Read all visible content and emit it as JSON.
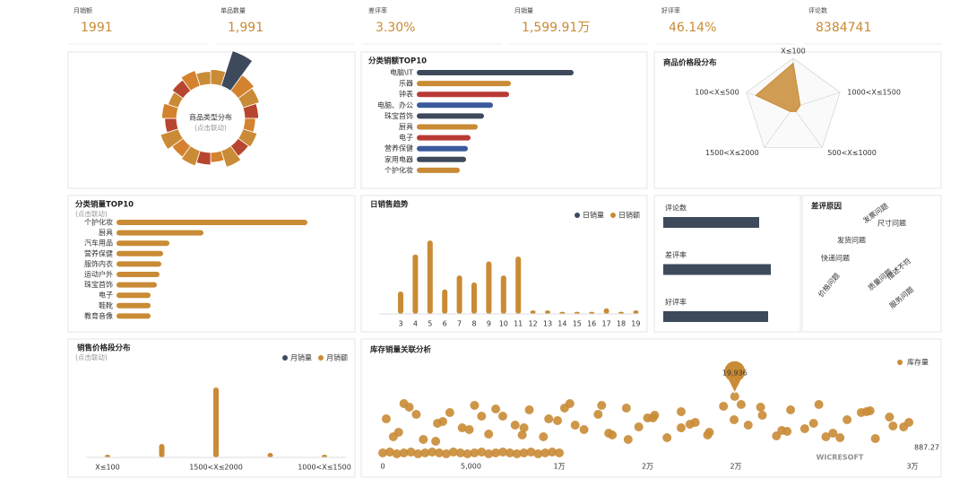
{
  "kpis": [
    {
      "label": "月销额",
      "value": "1991"
    },
    {
      "label": "单品数量",
      "value": "1,991"
    },
    {
      "label": "差评率",
      "value": "3.30%"
    },
    {
      "label": "月销量",
      "value": "1,599.91万"
    },
    {
      "label": "好评率",
      "value": "46.14%"
    },
    {
      "label": "评论数",
      "value": "8384741"
    }
  ],
  "watermark": "WICRESOFT",
  "chart_data": [
    {
      "type": "rose",
      "title": "商品类型分布",
      "subtitle": "(点击联动)",
      "values": [
        30,
        75,
        40,
        35,
        28,
        22,
        30,
        26,
        35,
        20,
        25,
        32,
        28,
        38,
        24,
        30,
        22,
        27,
        33,
        26
      ],
      "colors": [
        "#c98b35",
        "#3d4a5c",
        "#d4822f",
        "#c98b35",
        "#b8452f",
        "#d4822f",
        "#c98b35",
        "#b8452f",
        "#c98b35",
        "#d4822f",
        "#b8452f",
        "#c98b35",
        "#d4822f",
        "#c98b35",
        "#b8452f",
        "#d4822f",
        "#c98b35",
        "#b8452f",
        "#d4822f",
        "#c98b35"
      ]
    },
    {
      "type": "hbar",
      "title": "分类销额TOP10",
      "categories": [
        "电脑\\IT",
        "乐器",
        "钟表",
        "电脑、办公",
        "珠宝首饰",
        "厨具",
        "电子",
        "营养保健",
        "家用电器",
        "个护化妆"
      ],
      "values": [
        175,
        105,
        103,
        85,
        75,
        68,
        60,
        57,
        55,
        48
      ],
      "colors": [
        "#3d4a5c",
        "#c98b35",
        "#b83a35",
        "#3a5a9c",
        "#3d4a5c",
        "#c98b35",
        "#b83a35",
        "#3a5a9c",
        "#3d4a5c",
        "#c98b35"
      ]
    },
    {
      "type": "radar",
      "title": "商品价格段分布",
      "categories": [
        "X≤100",
        "1000<X≤1500",
        "500<X≤1000",
        "1500<X≤2000",
        "100<X≤500"
      ],
      "values": [
        90,
        15,
        10,
        10,
        80
      ],
      "rlim": [
        0,
        100
      ],
      "rticks": [
        20,
        40,
        60,
        80,
        100
      ],
      "color": "#c98b35"
    },
    {
      "type": "hbar",
      "title": "分类销量TOP10",
      "subtitle": "(点击联动)",
      "categories": [
        "个护化妆",
        "厨具",
        "汽车用品",
        "营养保健",
        "服饰内衣",
        "运动户外",
        "珠宝首饰",
        "电子",
        "鞋靴",
        "教育音像"
      ],
      "values": [
        213,
        97,
        59,
        52,
        50,
        48,
        45,
        38,
        38,
        38
      ],
      "color": "#c98b35"
    },
    {
      "type": "bar",
      "title": "日销售趋势",
      "categories": [
        "3",
        "4",
        "5",
        "6",
        "7",
        "8",
        "9",
        "10",
        "11",
        "12",
        "13",
        "14",
        "15",
        "16",
        "17",
        "18",
        "19"
      ],
      "series": [
        {
          "name": "日销量",
          "color": "#3d4a5c",
          "values": [
            0,
            0,
            0,
            0,
            0,
            0,
            0,
            0,
            0,
            0,
            0,
            0,
            0,
            0,
            0,
            0,
            0
          ]
        },
        {
          "name": "日销额",
          "color": "#c98b35",
          "values": [
            32,
            85,
            105,
            35,
            55,
            45,
            75,
            55,
            82,
            5,
            5,
            3,
            3,
            3,
            8,
            3,
            5
          ]
        }
      ]
    },
    {
      "type": "hbar",
      "label_position": "above",
      "categories": [
        "评论数",
        "差评率",
        "好评率"
      ],
      "values": [
        107,
        120,
        117
      ],
      "color": "#3d4a5c"
    },
    {
      "type": "wordcloud",
      "title": "差评原因",
      "words": [
        {
          "text": "发票问题",
          "weight": 9
        },
        {
          "text": "尺寸问题",
          "weight": 9
        },
        {
          "text": "发货问题",
          "weight": 12
        },
        {
          "text": "快递问题",
          "weight": 16
        },
        {
          "text": "质量问题",
          "weight": 25
        },
        {
          "text": "价格问题",
          "weight": 10
        },
        {
          "text": "描述不符",
          "weight": 14
        },
        {
          "text": "服务问题",
          "weight": 12
        }
      ],
      "colors": [
        "#b04a3a",
        "#b04a3a",
        "#a8452c",
        "#c98b35",
        "#3d4a5c",
        "#b04a3a",
        "#b04a3a",
        "#b04a3a"
      ]
    },
    {
      "type": "bar",
      "title": "销售价格段分布",
      "subtitle": "(点击联动)",
      "categories": [
        "X≤100",
        null,
        "1500<X≤2000",
        null,
        "1000<X≤1500"
      ],
      "series": [
        {
          "name": "月销量",
          "color": "#3d4a5c",
          "values": [
            0,
            0,
            0,
            0,
            0
          ]
        },
        {
          "name": "月销额",
          "color": "#c98b35",
          "values": [
            3,
            15,
            78,
            5,
            3
          ]
        }
      ]
    },
    {
      "type": "scatter",
      "title": "库存销量关联分析",
      "legend": "库存量",
      "color": "#c98b35",
      "xlim": [
        0,
        30000
      ],
      "ylim": [
        0,
        100
      ],
      "xticks": [
        0,
        {
          "value": 5000,
          "label": "5,000"
        },
        {
          "value": 10000,
          "label": "1万"
        },
        {
          "value": 15000,
          "label": "2万"
        },
        {
          "value": 20000,
          "label": "2万"
        },
        {
          "value": 30000,
          "label": "3万"
        }
      ],
      "annotations": [
        "19,936",
        "887.27"
      ],
      "x": [
        200,
        900,
        1500,
        2300,
        3100,
        3800,
        4500,
        5200,
        6000,
        6800,
        7500,
        8300,
        9100,
        9900,
        10600,
        11400,
        12200,
        13000,
        13800,
        14500,
        15300,
        16100,
        16900,
        17700,
        18500,
        19300,
        19936,
        20700,
        21500,
        22300,
        23100,
        23900,
        24700,
        25500,
        26300,
        27100,
        27900,
        28700,
        29500,
        600,
        1900,
        3400,
        4900,
        6400,
        7900,
        9400,
        10900,
        12400,
        13900,
        15400,
        16900,
        18400,
        19900,
        21400,
        22900,
        24400,
        25900,
        27400,
        28900,
        1200,
        3000,
        5600,
        8000,
        10300,
        12800,
        15000,
        17400,
        20300,
        22600,
        25100,
        27600,
        29800,
        0,
        400,
        800,
        1200,
        1600,
        2000,
        2400,
        2800,
        3200,
        3600,
        4000,
        4400,
        4800,
        5200,
        5600,
        6000,
        6400,
        6800,
        7200,
        7600,
        8000,
        8400,
        8800,
        9200,
        9600,
        10000
      ],
      "values": [
        45,
        30,
        58,
        22,
        40,
        52,
        35,
        60,
        28,
        48,
        38,
        55,
        25,
        43,
        62,
        33,
        50,
        27,
        57,
        36,
        46,
        24,
        53,
        41,
        30,
        59,
        70,
        38,
        49,
        26,
        55,
        34,
        61,
        29,
        44,
        52,
        23,
        47,
        36,
        25,
        50,
        42,
        33,
        56,
        27,
        45,
        38,
        60,
        22,
        49,
        35,
        27,
        44,
        58,
        31,
        40,
        24,
        53,
        37,
        62,
        20,
        48,
        35,
        57,
        29,
        46,
        39,
        61,
        32,
        25,
        54,
        41,
        7,
        8,
        6,
        7,
        8,
        6,
        7,
        8,
        7,
        6,
        8,
        7,
        6,
        7,
        8,
        6,
        7,
        8,
        7,
        6,
        7,
        8,
        6,
        7,
        8,
        7
      ]
    }
  ]
}
